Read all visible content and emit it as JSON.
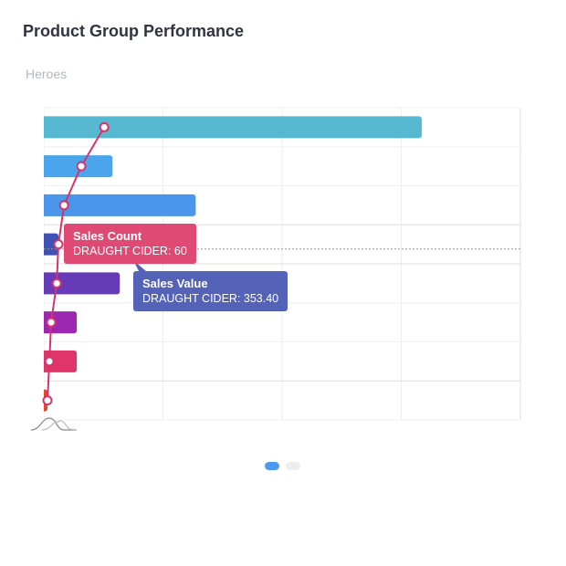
{
  "header": {
    "title": "Product Group Performance",
    "subtitle": "Heroes"
  },
  "chart_data": {
    "type": "bar",
    "orientation": "horizontal",
    "grid": true,
    "series": [
      {
        "name": "Sales Value",
        "type": "bar",
        "values": [
          9120,
          1656,
          3666,
          353.4,
          1833,
          795,
          795,
          90
        ],
        "colors": [
          "#56b8d1",
          "#4aa5ec",
          "#4a96ea",
          "#3f51b5",
          "#673ab7",
          "#9c27b0",
          "#e0356b",
          "#e8452c"
        ]
      },
      {
        "name": "Sales Count",
        "type": "line",
        "color": "#d6336c",
        "values": [
          248,
          154,
          83,
          60,
          53,
          30,
          23,
          15
        ]
      }
    ],
    "xlim": [
      0,
      11500
    ]
  },
  "tooltips": [
    {
      "title": "Sales Count",
      "text": "DRAUGHT CIDER: 60",
      "color": "#de4a74"
    },
    {
      "title": "Sales Value",
      "text": "DRAUGHT CIDER: 353.40",
      "color": "#5462b8"
    }
  ],
  "pagination": {
    "pages": 2,
    "active": 1,
    "active_color": "#4a9af0",
    "inactive_color": "#eeeeee"
  }
}
